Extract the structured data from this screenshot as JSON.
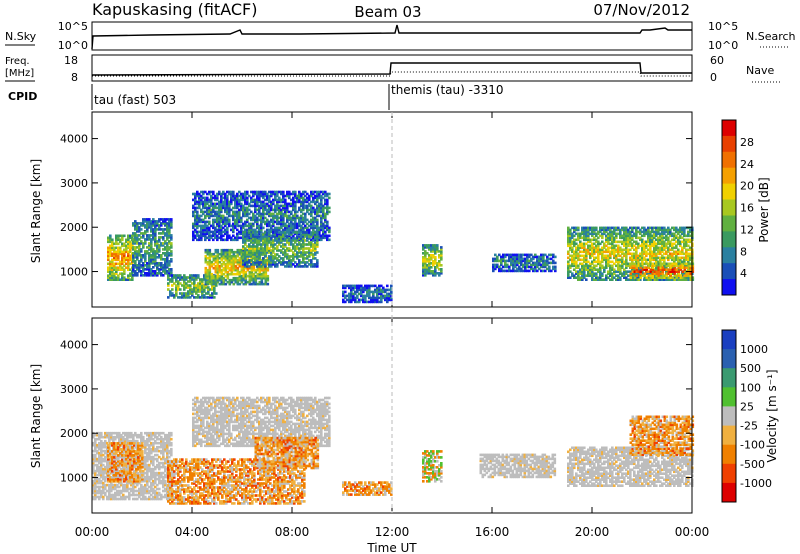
{
  "header": {
    "station": "Kapuskasing (fitACF)",
    "beam": "Beam 03",
    "date": "07/Nov/2012"
  },
  "strips": {
    "nsky_label": "N.Sky",
    "nsky_ticks": [
      "10^5",
      "10^0"
    ],
    "nsearch_label": "N.Search",
    "nsearch_ticks": [
      "10^5",
      "10^0"
    ],
    "freq_label": "Freq.",
    "freq_unit": "[MHz]",
    "freq_ticks": [
      "18",
      "8"
    ],
    "nave_label": "Nave",
    "nave_ticks": [
      "60",
      "0"
    ],
    "cpid_label": "CPID",
    "cpid_segments": [
      "tau (fast) 503",
      "themis (tau) -3310"
    ]
  },
  "chart_data": [
    {
      "type": "heatmap",
      "panel": "power",
      "ylabel": "Slant Range [km]",
      "xlabel": "Time UT",
      "x_ticks": [
        "00:00",
        "04:00",
        "08:00",
        "12:00",
        "16:00",
        "20:00",
        "00:00"
      ],
      "x_range_hours": [
        0,
        24
      ],
      "y_ticks": [
        1000,
        2000,
        3000,
        4000
      ],
      "ylim": [
        200,
        4600
      ],
      "colorbar": {
        "label": "Power [dB]",
        "ticks": [
          4,
          8,
          12,
          16,
          20,
          24,
          28
        ],
        "range": [
          0,
          32
        ],
        "colors": [
          "#1010f0",
          "#1a4fb8",
          "#2a80a0",
          "#3a9a60",
          "#60b040",
          "#a8c820",
          "#f0d000",
          "#f5a000",
          "#f07000",
          "#e84000",
          "#dd0000"
        ]
      },
      "regions": [
        {
          "t": [
            0.6,
            1.6
          ],
          "r": [
            800,
            1800
          ],
          "level": 0.75
        },
        {
          "t": [
            1.6,
            3.2
          ],
          "r": [
            900,
            2200
          ],
          "level": 0.35
        },
        {
          "t": [
            3.0,
            5.0
          ],
          "r": [
            400,
            900
          ],
          "level": 0.5
        },
        {
          "t": [
            4.5,
            7.0
          ],
          "r": [
            700,
            1500
          ],
          "level": 0.65
        },
        {
          "t": [
            4.0,
            9.5
          ],
          "r": [
            1700,
            2800
          ],
          "level": 0.25
        },
        {
          "t": [
            6.0,
            9.0
          ],
          "r": [
            1100,
            1900
          ],
          "level": 0.45
        },
        {
          "t": [
            10.0,
            12.0
          ],
          "r": [
            300,
            700
          ],
          "level": 0.2
        },
        {
          "t": [
            13.2,
            14.0
          ],
          "r": [
            900,
            1600
          ],
          "level": 0.55
        },
        {
          "t": [
            16.0,
            18.5
          ],
          "r": [
            1000,
            1400
          ],
          "level": 0.25
        },
        {
          "t": [
            19.0,
            24.0
          ],
          "r": [
            800,
            2000
          ],
          "level": 0.6
        },
        {
          "t": [
            21.5,
            24.0
          ],
          "r": [
            800,
            1200
          ],
          "level": 0.9
        }
      ]
    },
    {
      "type": "heatmap",
      "panel": "velocity",
      "ylabel": "Slant Range [km]",
      "xlabel": "Time UT",
      "x_ticks": [
        "00:00",
        "04:00",
        "08:00",
        "12:00",
        "16:00",
        "20:00",
        "00:00"
      ],
      "x_range_hours": [
        0,
        24
      ],
      "y_ticks": [
        1000,
        2000,
        3000,
        4000
      ],
      "ylim": [
        200,
        4600
      ],
      "colorbar": {
        "label": "Velocity [m s⁻¹]",
        "ticks": [
          "1000",
          "500",
          "100",
          "25",
          "-25",
          "-100",
          "-500",
          "-1000"
        ],
        "colors": [
          "#1a3fc0",
          "#2a60b0",
          "#3a9a70",
          "#50c030",
          "#bdbdbd",
          "#f0b040",
          "#f08000",
          "#f04000",
          "#dd0000"
        ]
      },
      "regions": [
        {
          "t": [
            0.0,
            3.2
          ],
          "r": [
            500,
            2000
          ],
          "level": "ground"
        },
        {
          "t": [
            0.6,
            2.0
          ],
          "r": [
            900,
            1800
          ],
          "level": "neg"
        },
        {
          "t": [
            3.0,
            8.5
          ],
          "r": [
            400,
            1400
          ],
          "level": "neg"
        },
        {
          "t": [
            4.0,
            9.5
          ],
          "r": [
            1700,
            2800
          ],
          "level": "ground"
        },
        {
          "t": [
            6.5,
            9.0
          ],
          "r": [
            1200,
            1900
          ],
          "level": "neg"
        },
        {
          "t": [
            10.0,
            12.0
          ],
          "r": [
            600,
            900
          ],
          "level": "neg"
        },
        {
          "t": [
            13.2,
            14.0
          ],
          "r": [
            900,
            1600
          ],
          "level": "mixed"
        },
        {
          "t": [
            15.5,
            18.5
          ],
          "r": [
            1000,
            1500
          ],
          "level": "ground"
        },
        {
          "t": [
            19.0,
            24.0
          ],
          "r": [
            800,
            1700
          ],
          "level": "ground"
        },
        {
          "t": [
            21.5,
            24.0
          ],
          "r": [
            1500,
            2400
          ],
          "level": "neg"
        }
      ]
    }
  ]
}
